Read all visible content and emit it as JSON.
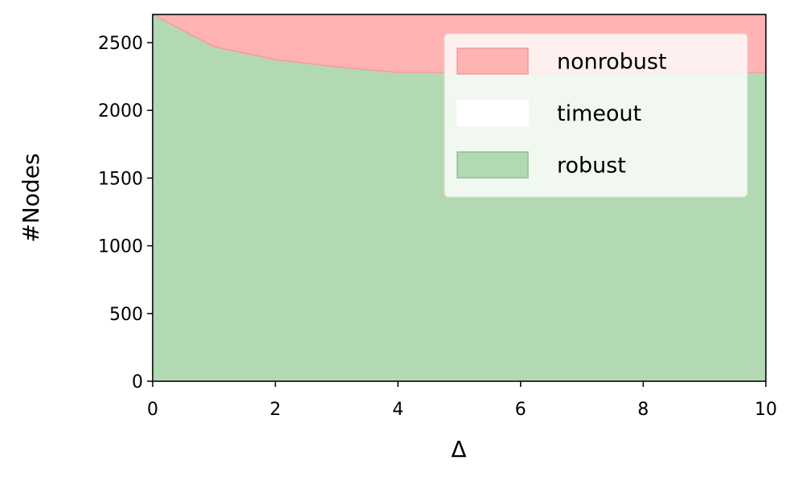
{
  "chart_data": {
    "type": "stackedarea",
    "xlabel": "Δ",
    "ylabel": "#Nodes",
    "x": [
      0,
      1,
      2,
      3,
      4,
      5,
      6,
      7,
      8,
      9,
      10
    ],
    "series": [
      {
        "name": "robust",
        "color": "#b3d9b3",
        "edge": "#8fbf8f",
        "values": [
          2708,
          2470,
          2375,
          2321,
          2280,
          2280,
          2280,
          2280,
          2280,
          2280,
          2280
        ]
      },
      {
        "name": "timeout",
        "color": "#ffffff",
        "edge": "#ffffff",
        "values": [
          0,
          0,
          0,
          0,
          0,
          0,
          0,
          0,
          0,
          0,
          0
        ]
      },
      {
        "name": "nonrobust",
        "color": "#ffb3b3",
        "edge": "#f29a9a",
        "values": [
          0,
          238,
          333,
          387,
          428,
          428,
          428,
          428,
          428,
          428,
          428
        ]
      }
    ],
    "xlim": [
      0,
      10
    ],
    "xticks": [
      0,
      2,
      4,
      6,
      8,
      10
    ],
    "ylim": [
      0,
      2708
    ],
    "yticks": [
      0,
      500,
      1000,
      1500,
      2000,
      2500
    ],
    "legend": "upper right"
  }
}
